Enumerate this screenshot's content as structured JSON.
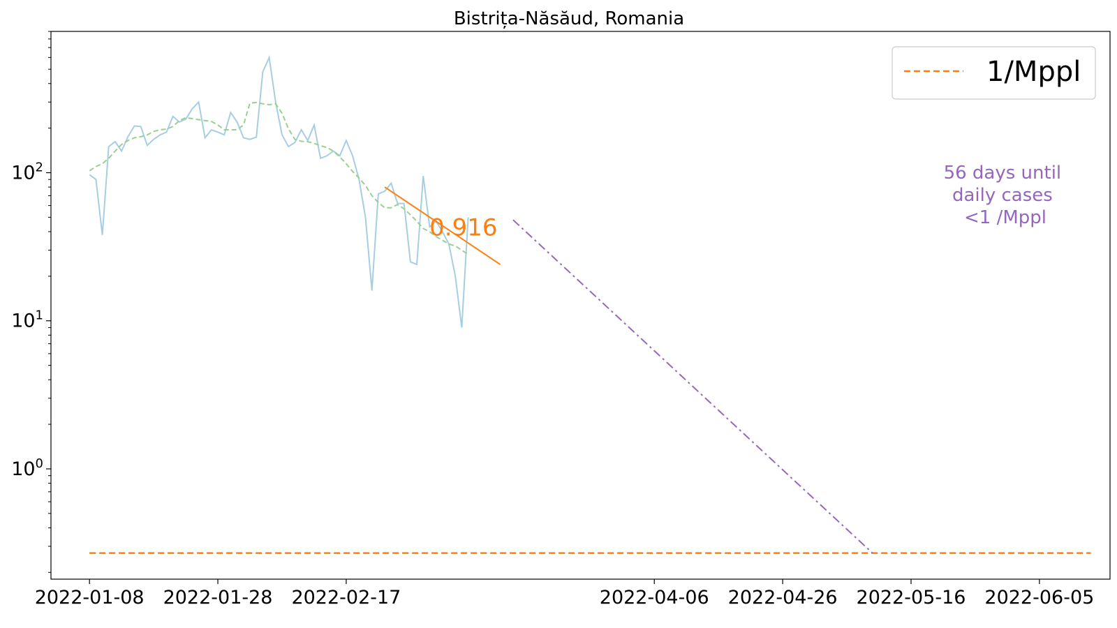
{
  "chart_data": {
    "type": "line",
    "title": "Bistrița-Năsăud, Romania",
    "xlabel": "",
    "ylabel": "",
    "yscale": "log",
    "ylim": [
      0.18,
      900
    ],
    "xlim": [
      "2022-01-02",
      "2022-06-16"
    ],
    "x_ticks": [
      "2022-01-08",
      "2022-01-28",
      "2022-02-17",
      "2022-04-06",
      "2022-04-26",
      "2022-05-16",
      "2022-06-05"
    ],
    "y_ticks": [
      {
        "value": 1,
        "base": "10",
        "exp": "0"
      },
      {
        "value": 10,
        "base": "10",
        "exp": "1"
      },
      {
        "value": 100,
        "base": "10",
        "exp": "2"
      }
    ],
    "grid": false,
    "legend": {
      "position": "top-right",
      "entries": [
        {
          "label": "1/Mppl",
          "style": "dashed",
          "color": "#ff7f0e"
        }
      ]
    },
    "colors": {
      "daily": "#a6cee3",
      "smoothed": "#98d08f",
      "fit": "#ff7f0e",
      "projection": "#9467bd",
      "threshold": "#ff7f0e"
    },
    "x_start": "2022-01-08",
    "series": [
      {
        "style": "solid",
        "color": "#a6cee3",
        "values": [
          97,
          90,
          38,
          150,
          162,
          140,
          175,
          207,
          205,
          153,
          168,
          180,
          188,
          240,
          220,
          230,
          270,
          300,
          172,
          195,
          188,
          180,
          255,
          220,
          172,
          168,
          174,
          480,
          600,
          300,
          180,
          150,
          160,
          195,
          165,
          210,
          125,
          130,
          140,
          130,
          165,
          130,
          90,
          50,
          16,
          72,
          75,
          85,
          62,
          62,
          25,
          24,
          95,
          43,
          47,
          40,
          33,
          20,
          9,
          50
        ]
      },
      {
        "style": "dashed",
        "color": "#98d08f",
        "values": [
          103,
          110,
          115,
          125,
          140,
          155,
          165,
          172,
          175,
          180,
          190,
          195,
          197,
          205,
          225,
          235,
          232,
          228,
          225,
          222,
          210,
          195,
          195,
          195,
          210,
          295,
          298,
          292,
          288,
          292,
          252,
          198,
          168,
          163,
          162,
          158,
          152,
          148,
          140,
          128,
          115,
          102,
          92,
          82,
          70,
          63,
          58,
          58,
          61,
          57,
          52,
          47,
          42,
          40,
          37,
          35,
          33,
          32,
          30,
          28
        ]
      }
    ],
    "fit": {
      "x_start": "2022-02-23",
      "x_end": "2022-03-13",
      "y_start": 80,
      "y_end": 24,
      "label": "0.916"
    },
    "projection": {
      "x_start": "2022-03-15",
      "x_end": "2022-05-10",
      "y_start": 48,
      "y_end": 0.27
    },
    "threshold": {
      "value": 0.27,
      "x_start": "2022-01-08",
      "x_end": "2022-06-13"
    },
    "annotation": {
      "lines": [
        "56 days until",
        "daily cases",
        "<1 /Mppl"
      ],
      "color": "#9467bd"
    }
  }
}
